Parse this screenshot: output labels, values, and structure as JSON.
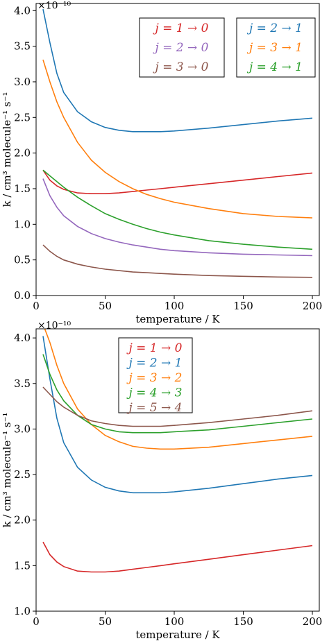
{
  "chart_data": [
    {
      "type": "line",
      "xlabel": "temperature / K",
      "ylabel": "k / cm³ molecule⁻¹ s⁻¹",
      "y_multiplier": "×10⁻¹⁰",
      "xlim": [
        0,
        205
      ],
      "ylim": [
        0.0,
        4.1
      ],
      "x_ticks": [
        0,
        50,
        100,
        150,
        200
      ],
      "x_tick_labels": [
        "0",
        "50",
        "100",
        "150",
        "200"
      ],
      "y_ticks": [
        0.0,
        0.5,
        1.0,
        1.5,
        2.0,
        2.5,
        3.0,
        3.5,
        4.0
      ],
      "y_tick_labels": [
        "0.0",
        "0.5",
        "1.0",
        "1.5",
        "2.0",
        "2.5",
        "3.0",
        "3.5",
        "4.0"
      ],
      "x": [
        5,
        10,
        15,
        20,
        30,
        40,
        50,
        60,
        70,
        80,
        90,
        100,
        125,
        150,
        175,
        200
      ],
      "legends": [
        {
          "position": "top-center",
          "entries": [
            0,
            1,
            2
          ]
        },
        {
          "position": "top-right",
          "entries": [
            3,
            4,
            5
          ]
        }
      ],
      "series": [
        {
          "name": "j = 1 → 0",
          "color": "#d62728",
          "values": [
            1.76,
            1.62,
            1.54,
            1.49,
            1.44,
            1.43,
            1.43,
            1.44,
            1.46,
            1.48,
            1.5,
            1.52,
            1.57,
            1.62,
            1.67,
            1.72
          ]
        },
        {
          "name": "j = 2 → 0",
          "color": "#9467bd",
          "values": [
            1.64,
            1.4,
            1.24,
            1.12,
            0.97,
            0.87,
            0.8,
            0.75,
            0.71,
            0.68,
            0.65,
            0.63,
            0.6,
            0.58,
            0.57,
            0.56
          ]
        },
        {
          "name": "j = 3 → 0",
          "color": "#8c564b",
          "values": [
            0.71,
            0.62,
            0.55,
            0.5,
            0.44,
            0.4,
            0.37,
            0.35,
            0.33,
            0.32,
            0.31,
            0.3,
            0.28,
            0.27,
            0.26,
            0.255
          ]
        },
        {
          "name": "j = 2 → 1",
          "color": "#1f77b4",
          "values": [
            4.02,
            3.55,
            3.12,
            2.85,
            2.58,
            2.44,
            2.36,
            2.32,
            2.3,
            2.3,
            2.3,
            2.31,
            2.35,
            2.4,
            2.45,
            2.49
          ]
        },
        {
          "name": "j = 3 → 1",
          "color": "#ff7f0e",
          "values": [
            3.31,
            3.0,
            2.72,
            2.5,
            2.15,
            1.9,
            1.73,
            1.6,
            1.5,
            1.42,
            1.36,
            1.31,
            1.22,
            1.15,
            1.11,
            1.09
          ]
        },
        {
          "name": "j = 4 → 1",
          "color": "#2ca02c",
          "values": [
            1.76,
            1.68,
            1.6,
            1.52,
            1.38,
            1.26,
            1.15,
            1.07,
            1.0,
            0.94,
            0.89,
            0.85,
            0.77,
            0.72,
            0.68,
            0.65
          ]
        }
      ]
    },
    {
      "type": "line",
      "xlabel": "temperature / K",
      "ylabel": "k / cm³ molecule⁻¹ s⁻¹",
      "y_multiplier": "×10⁻¹⁰",
      "xlim": [
        0,
        205
      ],
      "ylim": [
        1.0,
        4.1
      ],
      "x_ticks": [
        0,
        50,
        100,
        150,
        200
      ],
      "x_tick_labels": [
        "0",
        "50",
        "100",
        "150",
        "200"
      ],
      "y_ticks": [
        1.0,
        1.5,
        2.0,
        2.5,
        3.0,
        3.5,
        4.0
      ],
      "y_tick_labels": [
        "1.0",
        "1.5",
        "2.0",
        "2.5",
        "3.0",
        "3.5",
        "4.0"
      ],
      "x": [
        5,
        10,
        15,
        20,
        30,
        40,
        50,
        60,
        70,
        80,
        90,
        100,
        125,
        150,
        175,
        200
      ],
      "legends": [
        {
          "position": "top-center",
          "entries": [
            0,
            1,
            2,
            3,
            4
          ]
        }
      ],
      "series": [
        {
          "name": "j = 1 → 0",
          "color": "#d62728",
          "values": [
            1.76,
            1.62,
            1.54,
            1.49,
            1.44,
            1.43,
            1.43,
            1.44,
            1.46,
            1.48,
            1.5,
            1.52,
            1.57,
            1.62,
            1.67,
            1.72
          ]
        },
        {
          "name": "j = 2 → 1",
          "color": "#1f77b4",
          "values": [
            4.02,
            3.55,
            3.12,
            2.85,
            2.58,
            2.44,
            2.36,
            2.32,
            2.3,
            2.3,
            2.3,
            2.31,
            2.35,
            2.4,
            2.45,
            2.49
          ]
        },
        {
          "name": "j = 3 → 2",
          "color": "#ff7f0e",
          "values": [
            4.15,
            3.95,
            3.7,
            3.5,
            3.22,
            3.05,
            2.93,
            2.86,
            2.81,
            2.79,
            2.78,
            2.78,
            2.8,
            2.84,
            2.88,
            2.92
          ]
        },
        {
          "name": "j = 4 → 3",
          "color": "#2ca02c",
          "values": [
            3.82,
            3.6,
            3.43,
            3.31,
            3.15,
            3.05,
            3.0,
            2.97,
            2.96,
            2.96,
            2.96,
            2.97,
            2.99,
            3.03,
            3.07,
            3.11
          ]
        },
        {
          "name": "j = 5 → 4",
          "color": "#8c564b",
          "values": [
            3.46,
            3.38,
            3.3,
            3.24,
            3.15,
            3.09,
            3.06,
            3.04,
            3.03,
            3.03,
            3.03,
            3.04,
            3.07,
            3.11,
            3.15,
            3.2
          ]
        }
      ]
    }
  ]
}
